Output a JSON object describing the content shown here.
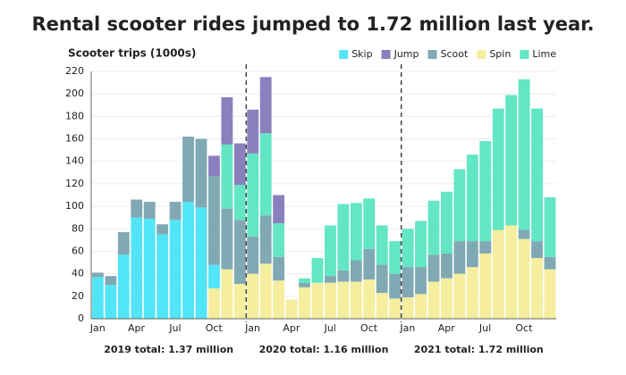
{
  "chart_data": {
    "type": "stacked-bar",
    "title": "Rental scooter rides jumped to 1.72 million last year.",
    "subtitle": "Scooter trips (1000s)",
    "categories": [
      "Jan",
      null,
      null,
      "Apr",
      null,
      null,
      "Jul",
      null,
      null,
      "Oct",
      null,
      null,
      "Jan",
      null,
      null,
      "Apr",
      null,
      null,
      "Jul",
      null,
      null,
      "Oct",
      null,
      null,
      "Jan",
      null,
      null,
      "Apr",
      null,
      null,
      "Jul",
      null,
      null,
      "Oct",
      null,
      null
    ],
    "series": [
      {
        "name": "Skip",
        "color": "#52e5f8",
        "values": [
          37,
          30,
          57,
          90,
          89,
          75,
          88,
          104,
          99,
          21,
          null,
          null,
          null,
          null,
          null,
          null,
          null,
          null,
          null,
          null,
          null,
          null,
          null,
          null,
          null,
          null,
          null,
          null,
          null,
          null,
          null,
          null,
          null,
          null,
          null,
          null
        ]
      },
      {
        "name": "Jump",
        "color": "#8a80be",
        "values": [
          null,
          null,
          null,
          null,
          null,
          null,
          null,
          null,
          null,
          18,
          42,
          37,
          39,
          50,
          25,
          null,
          null,
          null,
          null,
          null,
          null,
          null,
          null,
          null,
          null,
          null,
          null,
          null,
          null,
          null,
          null,
          null,
          null,
          null,
          null,
          null
        ]
      },
      {
        "name": "Scoot",
        "color": "#80a9b3",
        "values": [
          4,
          8,
          20,
          16,
          15,
          9,
          16,
          58,
          61,
          79,
          54,
          57,
          33,
          43,
          21,
          null,
          4,
          null,
          6,
          10,
          19,
          27,
          25,
          22,
          27,
          24,
          24,
          22,
          29,
          23,
          11,
          null,
          null,
          8,
          15,
          11
        ]
      },
      {
        "name": "Spin",
        "color": "#f4ee9e",
        "values": [
          null,
          null,
          null,
          null,
          null,
          null,
          null,
          null,
          null,
          27,
          44,
          31,
          40,
          49,
          34,
          17,
          28,
          32,
          32,
          33,
          33,
          35,
          23,
          18,
          19,
          22,
          33,
          36,
          40,
          46,
          58,
          79,
          83,
          71,
          54,
          44
        ]
      },
      {
        "name": "Lime",
        "color": "#62e6c3",
        "values": [
          null,
          null,
          null,
          null,
          null,
          null,
          null,
          null,
          null,
          null,
          57,
          31,
          74,
          73,
          30,
          null,
          4,
          22,
          45,
          59,
          51,
          45,
          35,
          29,
          34,
          41,
          48,
          55,
          64,
          77,
          89,
          108,
          116,
          134,
          118,
          53
        ]
      }
    ],
    "ylim": [
      0,
      220
    ],
    "yticks": [
      0,
      20,
      40,
      60,
      80,
      100,
      120,
      140,
      160,
      180,
      200,
      220
    ],
    "grid": true,
    "annotations": [
      "2019 total: 1.37 million",
      "2020 total: 1.16 million",
      "2021 total: 1.72 million"
    ],
    "legend": "top-right"
  }
}
